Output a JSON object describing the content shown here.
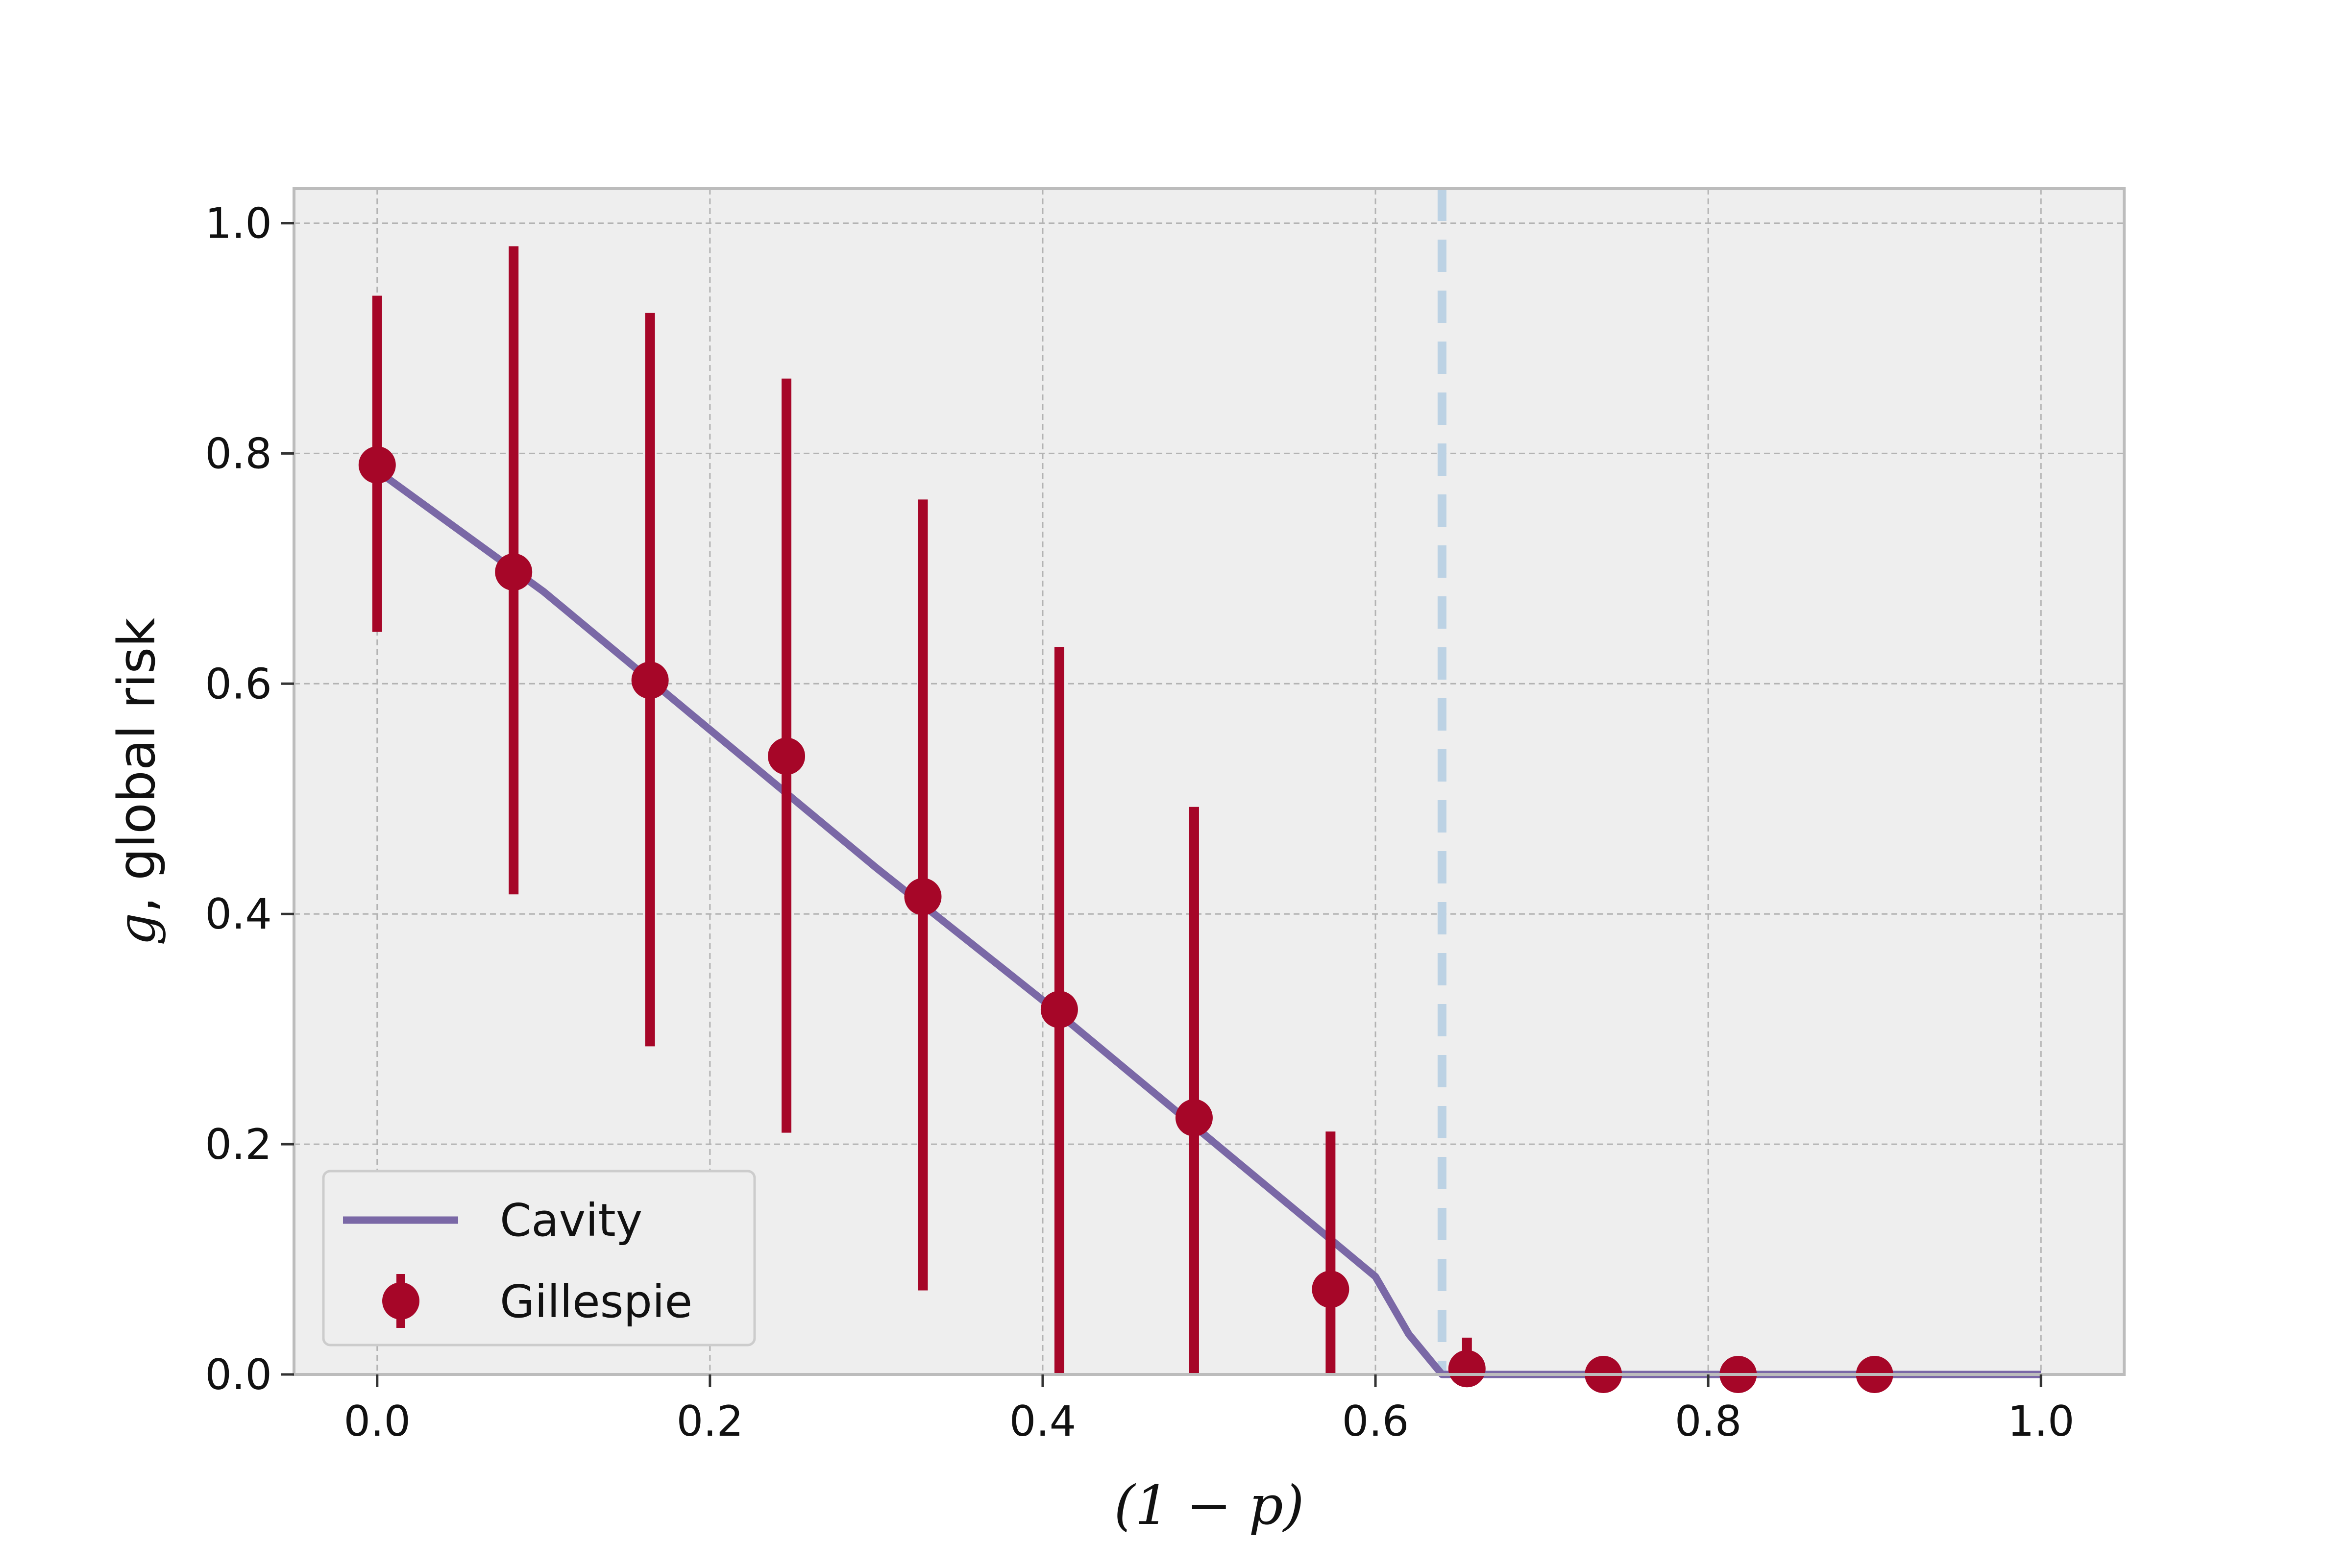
{
  "chart_data": {
    "type": "scatter",
    "title": "",
    "xlabel": "(1 − p)",
    "ylabel_var": "g",
    "ylabel_text": ", global risk",
    "xlim": [
      -0.05,
      1.05
    ],
    "ylim": [
      0.0,
      1.03
    ],
    "x_ticks": [
      0.0,
      0.2,
      0.4,
      0.6,
      0.8,
      1.0
    ],
    "x_tick_labels": [
      "0.0",
      "0.2",
      "0.4",
      "0.6",
      "0.8",
      "1.0"
    ],
    "y_ticks": [
      0.0,
      0.2,
      0.4,
      0.6,
      0.8,
      1.0
    ],
    "y_tick_labels": [
      "0.0",
      "0.2",
      "0.4",
      "0.6",
      "0.8",
      "1.0"
    ],
    "grid": true,
    "legend_position": "lower-left",
    "threshold_x": 0.64,
    "series": [
      {
        "name": "Cavity",
        "kind": "line",
        "color": "#7a68a6",
        "x": [
          0.0,
          0.1,
          0.2,
          0.3,
          0.4,
          0.5,
          0.6,
          0.62,
          0.64,
          0.7,
          0.8,
          0.9,
          1.0
        ],
        "y": [
          0.785,
          0.68,
          0.56,
          0.44,
          0.325,
          0.205,
          0.085,
          0.035,
          0.0,
          0.0,
          0.0,
          0.0,
          0.0
        ]
      },
      {
        "name": "Gillespie",
        "kind": "errorbar",
        "color": "#a60628",
        "x": [
          0.0,
          0.082,
          0.164,
          0.246,
          0.328,
          0.41,
          0.491,
          0.573,
          0.655,
          0.737,
          0.818,
          0.9
        ],
        "y": [
          0.79,
          0.697,
          0.603,
          0.537,
          0.415,
          0.317,
          0.223,
          0.074,
          0.005,
          0.0,
          0.0,
          0.0
        ],
        "yerr_low": [
          0.645,
          0.417,
          0.285,
          0.21,
          0.073,
          0.0,
          0.0,
          0.0,
          0.0,
          0.0,
          0.0,
          0.0
        ],
        "yerr_high": [
          0.937,
          0.98,
          0.922,
          0.865,
          0.76,
          0.632,
          0.493,
          0.211,
          0.032,
          0.0,
          0.0,
          0.0
        ]
      }
    ],
    "colors": {
      "background": "#eeeeee",
      "grid": "#b3b3b3",
      "frame": "#bcbcbc",
      "threshold": "#bcd2e4"
    }
  }
}
